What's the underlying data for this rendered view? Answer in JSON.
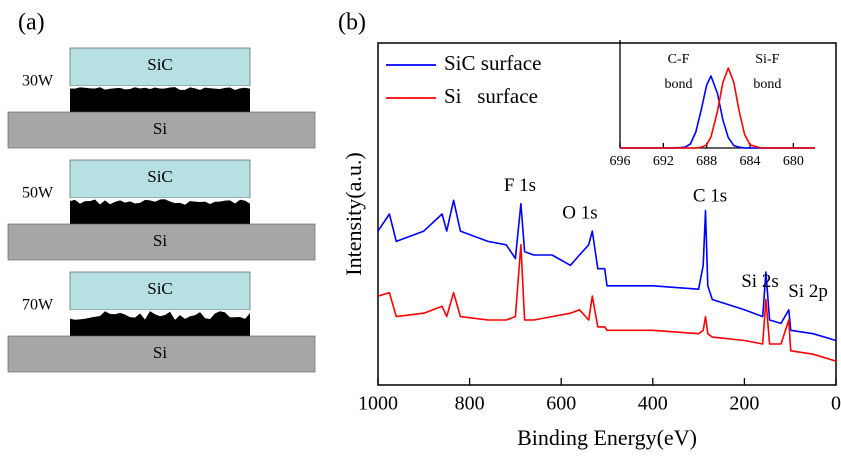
{
  "panel_a": {
    "label": "(a)",
    "stacks": [
      {
        "power": "30W",
        "top": "SiC",
        "bottom": "Si"
      },
      {
        "power": "50W",
        "top": "SiC",
        "bottom": "Si"
      },
      {
        "power": "70W",
        "top": "SiC",
        "bottom": "Si"
      }
    ]
  },
  "chart_data": [
    {
      "type": "line",
      "panel_label": "(b)",
      "xlabel": "Binding Energy(eV)",
      "ylabel": "Intensity(a.u.)",
      "xlim": [
        1000,
        0
      ],
      "xticks": [
        1000,
        800,
        600,
        400,
        200,
        0
      ],
      "ylim": [
        0,
        100
      ],
      "legend": "upper left",
      "x": [
        1000,
        975,
        960,
        900,
        860,
        850,
        835,
        820,
        760,
        720,
        700,
        688,
        680,
        660,
        620,
        580,
        560,
        540,
        532,
        520,
        505,
        500,
        450,
        400,
        300,
        290,
        285,
        280,
        270,
        200,
        160,
        153,
        145,
        120,
        103,
        99,
        50,
        0
      ],
      "series": [
        {
          "name": "SiC surface",
          "color": "#0000ff",
          "values": [
            45,
            50,
            42,
            45,
            50,
            45,
            54,
            45,
            42,
            41,
            37,
            53,
            39,
            38,
            38,
            35,
            38,
            41,
            45,
            34,
            34,
            29,
            29,
            29,
            28,
            35,
            51,
            29,
            25,
            22,
            20,
            33,
            19,
            18,
            22,
            16,
            15,
            13
          ]
        },
        {
          "name": "Si   surface",
          "color": "#ff0000",
          "values": [
            26,
            27,
            20,
            21,
            23,
            20,
            27,
            20,
            19,
            19,
            20,
            41,
            19,
            19,
            20,
            21,
            22,
            19,
            26,
            17,
            17,
            16,
            16,
            16,
            15,
            16,
            20,
            15,
            14,
            13,
            12,
            25,
            12,
            12,
            19,
            10,
            9,
            7
          ]
        }
      ],
      "annotations": [
        {
          "text": "F 1s",
          "x": 690,
          "y": 58
        },
        {
          "text": "O 1s",
          "x": 559,
          "y": 50
        },
        {
          "text": "C 1s",
          "x": 275,
          "y": 55
        },
        {
          "text": "Si 2s",
          "x": 166,
          "y": 30
        },
        {
          "text": "Si 2p",
          "x": 61,
          "y": 27
        }
      ]
    },
    {
      "type": "line",
      "xlim": [
        696,
        678
      ],
      "xticks": [
        696,
        692,
        688,
        684,
        680
      ],
      "ylim": [
        0,
        135
      ],
      "x": [
        696,
        692,
        691,
        690,
        689.5,
        689,
        688.5,
        688,
        687.6,
        687,
        686.5,
        686,
        685.5,
        685,
        684.5,
        684,
        683,
        682,
        680,
        678
      ],
      "series": [
        {
          "color": "#0000ff",
          "values": [
            0,
            0,
            0,
            1,
            5,
            20,
            48,
            79,
            90,
            68,
            35,
            13,
            3,
            1,
            0,
            0,
            0,
            0,
            0,
            0
          ]
        },
        {
          "color": "#ff0000",
          "values": [
            0,
            0,
            0,
            0,
            0,
            0,
            1,
            4,
            14,
            46,
            82,
            100,
            82,
            46,
            17,
            4,
            0,
            0,
            0,
            0
          ]
        }
      ],
      "annotations": [
        {
          "text": "C-F",
          "x": 690.6,
          "y": 110
        },
        {
          "text": "bond",
          "x": 690.6,
          "y": 79
        },
        {
          "text": "Si-F",
          "x": 682.4,
          "y": 110
        },
        {
          "text": "bond",
          "x": 682.4,
          "y": 79
        }
      ]
    }
  ]
}
